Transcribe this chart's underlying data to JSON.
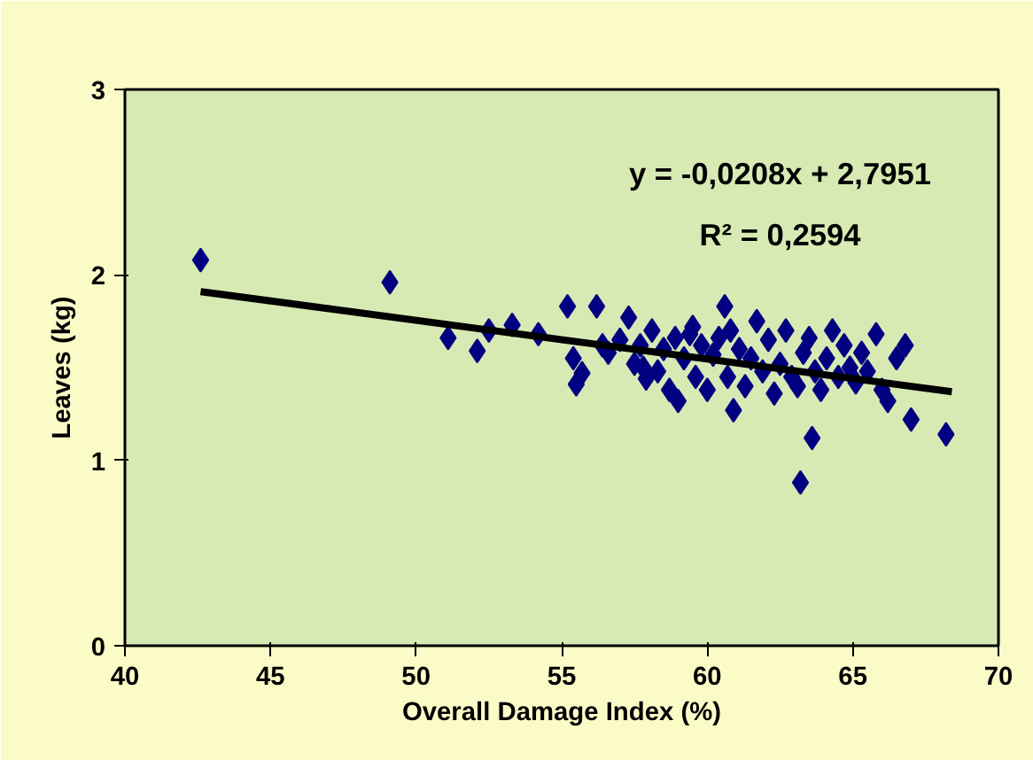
{
  "chart_data": {
    "type": "scatter",
    "xlabel": "Overall Damage Index (%)",
    "ylabel": "Leaves (kg)",
    "xlim": [
      40,
      70
    ],
    "xticks": [
      40,
      45,
      50,
      55,
      60,
      65,
      70
    ],
    "ylim": [
      0,
      3
    ],
    "yticks": [
      0,
      1,
      2,
      3
    ],
    "grid": false,
    "annotations": [
      "y = -0,0208x + 2,7951",
      "R² = 0,2594"
    ],
    "series": [
      {
        "marker": "diamond",
        "color": "#000080",
        "x": [
          42.6,
          49.1,
          51.1,
          52.1,
          52.5,
          53.3,
          54.2,
          55.2,
          55.4,
          55.5,
          55.7,
          56.2,
          56.4,
          56.6,
          57.0,
          57.3,
          57.5,
          57.7,
          57.9,
          58.1,
          58.3,
          58.5,
          58.7,
          58.9,
          59.0,
          59.2,
          59.4,
          59.6,
          59.8,
          60.0,
          60.2,
          60.4,
          60.6,
          60.7,
          60.9,
          61.1,
          61.3,
          61.5,
          61.7,
          61.9,
          62.1,
          62.3,
          62.5,
          62.7,
          62.9,
          63.1,
          63.3,
          63.5,
          63.7,
          63.9,
          64.1,
          64.3,
          64.5,
          64.7,
          64.9,
          65.1,
          65.3,
          65.5,
          65.8,
          66.0,
          66.2,
          66.5,
          66.8,
          67.0,
          68.2,
          63.2,
          63.6,
          60.8,
          59.5,
          57.8
        ],
        "values": [
          2.08,
          1.96,
          1.66,
          1.59,
          1.7,
          1.73,
          1.68,
          1.83,
          1.55,
          1.41,
          1.47,
          1.83,
          1.62,
          1.58,
          1.65,
          1.77,
          1.52,
          1.62,
          1.44,
          1.7,
          1.48,
          1.6,
          1.38,
          1.66,
          1.32,
          1.55,
          1.68,
          1.45,
          1.62,
          1.38,
          1.57,
          1.66,
          1.83,
          1.45,
          1.27,
          1.6,
          1.4,
          1.55,
          1.75,
          1.48,
          1.65,
          1.36,
          1.52,
          1.7,
          1.45,
          1.4,
          1.58,
          1.66,
          1.48,
          1.38,
          1.55,
          1.7,
          1.45,
          1.62,
          1.5,
          1.42,
          1.58,
          1.48,
          1.68,
          1.38,
          1.32,
          1.55,
          1.62,
          1.22,
          1.14,
          0.88,
          1.12,
          1.7,
          1.72,
          1.5
        ]
      },
      {
        "type": "line",
        "marker": "none",
        "color": "#000000",
        "x": [
          42.6,
          68.4
        ],
        "values": [
          1.91,
          1.37
        ]
      }
    ]
  }
}
